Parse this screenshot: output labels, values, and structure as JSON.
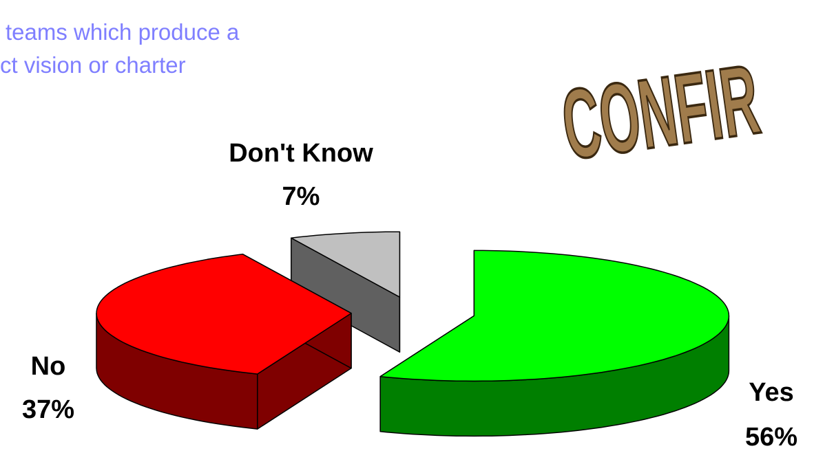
{
  "chart_data": {
    "type": "pie3d",
    "title_lines": [
      "teams which produce a",
      "ct vision or charter"
    ],
    "annotation": "CONFIR",
    "categories": [
      "Yes",
      "No",
      "Don't Know"
    ],
    "values": [
      56,
      37,
      7
    ],
    "value_labels": [
      "56%",
      "37%",
      "7%"
    ],
    "colors": [
      "#00ff00",
      "#ff0000",
      "#c0c0c0"
    ]
  }
}
